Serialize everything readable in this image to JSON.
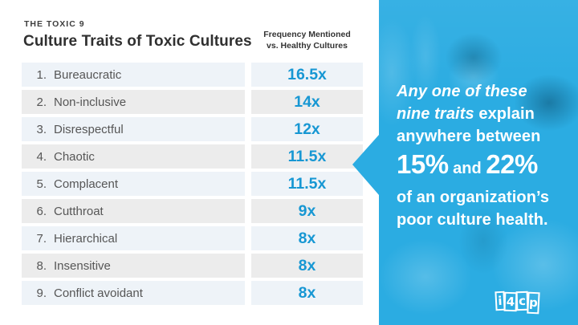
{
  "slide": {
    "kicker": "THE TOXIC 9",
    "title": "Culture Traits of Toxic Cultures",
    "column_header_line1": "Frequency Mentioned",
    "column_header_line2": "vs. Healthy Cultures"
  },
  "table": {
    "rows": [
      {
        "rank": "1.",
        "trait": "Bureaucratic",
        "frequency": "16.5x"
      },
      {
        "rank": "2.",
        "trait": "Non-inclusive",
        "frequency": "14x"
      },
      {
        "rank": "3.",
        "trait": "Disrespectful",
        "frequency": "12x"
      },
      {
        "rank": "4.",
        "trait": "Chaotic",
        "frequency": "11.5x"
      },
      {
        "rank": "5.",
        "trait": "Complacent",
        "frequency": "11.5x"
      },
      {
        "rank": "6.",
        "trait": "Cutthroat",
        "frequency": "9x"
      },
      {
        "rank": "7.",
        "trait": "Hierarchical",
        "frequency": "8x"
      },
      {
        "rank": "8.",
        "trait": "Insensitive",
        "frequency": "8x"
      },
      {
        "rank": "9.",
        "trait": "Conflict avoidant",
        "frequency": "8x"
      }
    ]
  },
  "callout": {
    "line1_italic": "Any one of these",
    "line2_italic": "nine traits",
    "line2_rest": " explain",
    "line3": "anywhere between",
    "stat1": "15%",
    "conjunction": " and ",
    "stat2": "22%",
    "line5": "of an organization’s",
    "line6": "poor culture health."
  },
  "logo": {
    "letters": [
      "i",
      "4",
      "c",
      "p"
    ]
  },
  "colors": {
    "accent_value_blue": "#1797d3",
    "panel_blue": "#2bace2",
    "row_odd_bg": "#eef3f8",
    "row_even_bg": "#ececec",
    "text_dark": "#303030",
    "text_gray": "#565656",
    "callout_text": "#ffffff"
  }
}
